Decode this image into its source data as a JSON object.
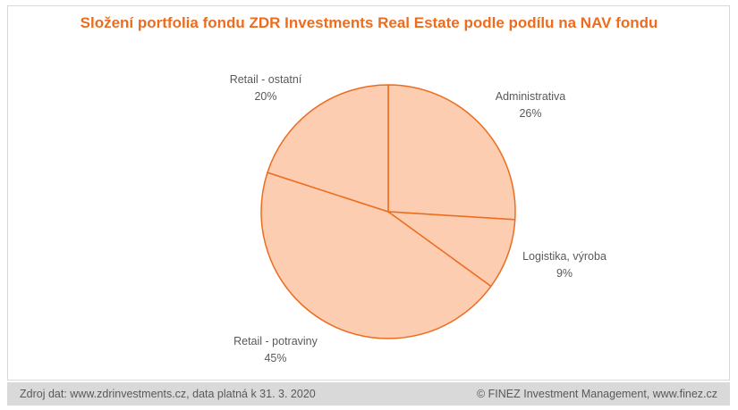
{
  "chart_data": {
    "type": "pie",
    "title": "Složení portfolia fondu ZDR Investments Real Estate podle podílu na NAV fondu",
    "slices": [
      {
        "label": "Administrativa",
        "value": 26,
        "value_label": "26%"
      },
      {
        "label": "Logistika, výroba",
        "value": 9,
        "value_label": "9%"
      },
      {
        "label": "Retail - potraviny",
        "value": 45,
        "value_label": "45%"
      },
      {
        "label": "Retail - ostatní",
        "value": 20,
        "value_label": "20%"
      }
    ],
    "colors": {
      "fill": "#fccdb0",
      "stroke": "#ed6c1e",
      "title": "#ed6c1e",
      "label": "#595959"
    }
  },
  "footer": {
    "source": "Zdroj dat: www.zdrinvestments.cz, data platná k 31. 3. 2020",
    "copyright": "© FINEZ Investment Management, www.finez.cz"
  }
}
